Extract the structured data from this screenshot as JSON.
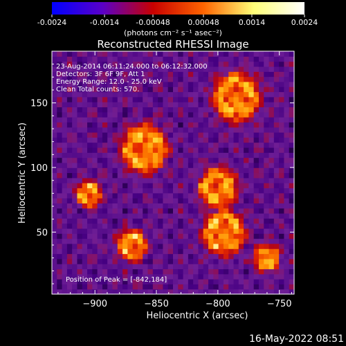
{
  "colorbar": {
    "tick_labels": [
      "-0.0024",
      "-0.0014",
      "-0.00048",
      "0.00048",
      "0.0014",
      "0.0024"
    ],
    "units": "(photons cm⁻² s⁻¹ asec⁻²)",
    "range": [
      -0.0024,
      0.0024
    ],
    "colors": [
      "#0000ff",
      "#5a00c8",
      "#c80000",
      "#ff6400",
      "#ffff78",
      "#ffffff"
    ]
  },
  "chart_data": {
    "type": "heatmap",
    "title": "Reconstructed RHESSI Image",
    "xlabel": "Heliocentric X (arcsec)",
    "ylabel": "Heliocentric Y (arcsec)",
    "xlim": [
      -935,
      -738
    ],
    "ylim": [
      2,
      190
    ],
    "x_ticks": [
      -900,
      -850,
      -800,
      -750
    ],
    "y_ticks": [
      50,
      100,
      150
    ],
    "annotations": [
      "23-Aug-2014 06:11:24.000 to 06:12:32.000",
      "Detectors: 3F 6F 9F, Att 1",
      "Energy Range: 12.0 - 25.0 keV",
      "Clean    Total counts: 570.",
      "Position of Peak = [-842,184]"
    ],
    "peak": [
      -842,
      184
    ],
    "sources": [
      {
        "x": -785,
        "y": 155,
        "r": 22
      },
      {
        "x": -860,
        "y": 115,
        "r": 22
      },
      {
        "x": -800,
        "y": 85,
        "r": 18
      },
      {
        "x": -795,
        "y": 50,
        "r": 20
      },
      {
        "x": -870,
        "y": 40,
        "r": 14
      },
      {
        "x": -905,
        "y": 80,
        "r": 12
      },
      {
        "x": -760,
        "y": 30,
        "r": 12
      }
    ]
  },
  "footer": {
    "date": "16-May-2022 08:51"
  }
}
